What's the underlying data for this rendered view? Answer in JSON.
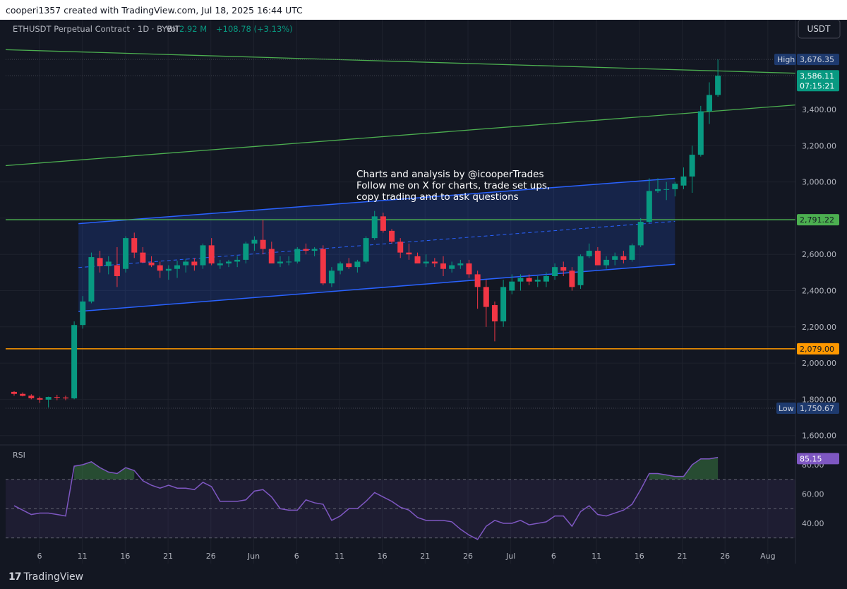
{
  "header": {
    "credit": "cooperi1357 created with TradingView.com, Jul 18, 2025 16:44 UTC"
  },
  "legend": {
    "symbol": "ETHUSDT Perpetual Contract · 1D · BYBIT",
    "vol_label": "Vol",
    "vol_value": "2.92 M",
    "change": "+108.78 (+3.13%)"
  },
  "currency_button": "USDT",
  "footer": {
    "brand": "TradingView",
    "logo_glyph": "17"
  },
  "colors": {
    "background": "#131722",
    "up": "#089981",
    "down": "#f23645",
    "channel": "#2962ff",
    "green_line": "#4caf50",
    "orange_line": "#ff9800",
    "rsi": "#7e57c2",
    "text": "#b2b5be"
  },
  "chart_data": {
    "type": "candlestick",
    "title": "",
    "price_axis": {
      "ticks": [
        3400,
        3200,
        3000,
        2800,
        2600,
        2400,
        2200,
        2000,
        1800,
        1600
      ],
      "tick_labels": [
        "3,400.00",
        "3,200.00",
        "3,000.00",
        "",
        "2,600.00",
        "2,400.00",
        "2,200.00",
        "2,000.00",
        "1,800.00",
        "1,600.00"
      ]
    },
    "time_axis": {
      "labels": [
        "6",
        "11",
        "16",
        "21",
        "26",
        "Jun",
        "6",
        "11",
        "16",
        "21",
        "26",
        "Jul",
        "6",
        "11",
        "16",
        "21",
        "26",
        "Aug"
      ]
    },
    "high": {
      "label": "High",
      "value": 3676.35,
      "text": "3,676.35"
    },
    "low": {
      "label": "Low",
      "value": 1750.67,
      "text": "1,750.67"
    },
    "last_price": {
      "value": 3586.11,
      "text": "3,586.11",
      "countdown": "07:15:21"
    },
    "levels": [
      {
        "name": "horizontal-green-level",
        "value": 2791.22,
        "text": "2,791.22",
        "color": "#4caf50"
      },
      {
        "name": "horizontal-orange-level",
        "value": 2079.0,
        "text": "2,079.00",
        "color": "#ff9800"
      }
    ],
    "annotation": [
      "Charts and analysis by @icooperTrades",
      "Follow me on X for charts, trade set ups,",
      "copy trading and to ask questions"
    ],
    "ohlc": [
      [
        1841,
        1845,
        1820,
        1830
      ],
      [
        1830,
        1838,
        1816,
        1819
      ],
      [
        1820,
        1828,
        1800,
        1806
      ],
      [
        1806,
        1815,
        1780,
        1798
      ],
      [
        1798,
        1815,
        1755,
        1813
      ],
      [
        1813,
        1825,
        1795,
        1810
      ],
      [
        1810,
        1820,
        1795,
        1805
      ],
      [
        1805,
        2230,
        1800,
        2210
      ],
      [
        2210,
        2370,
        2190,
        2340
      ],
      [
        2340,
        2610,
        2330,
        2585
      ],
      [
        2580,
        2620,
        2500,
        2535
      ],
      [
        2535,
        2590,
        2490,
        2560
      ],
      [
        2540,
        2640,
        2420,
        2480
      ],
      [
        2520,
        2700,
        2500,
        2690
      ],
      [
        2690,
        2720,
        2580,
        2610
      ],
      [
        2610,
        2640,
        2560,
        2555
      ],
      [
        2555,
        2590,
        2530,
        2540
      ],
      [
        2540,
        2560,
        2470,
        2510
      ],
      [
        2510,
        2540,
        2460,
        2520
      ],
      [
        2520,
        2565,
        2470,
        2540
      ],
      [
        2540,
        2575,
        2500,
        2560
      ],
      [
        2560,
        2580,
        2510,
        2540
      ],
      [
        2540,
        2660,
        2520,
        2650
      ],
      [
        2650,
        2690,
        2540,
        2550
      ],
      [
        2540,
        2570,
        2520,
        2550
      ],
      [
        2550,
        2570,
        2530,
        2560
      ],
      [
        2560,
        2590,
        2530,
        2570
      ],
      [
        2570,
        2670,
        2550,
        2660
      ],
      [
        2660,
        2700,
        2620,
        2680
      ],
      [
        2680,
        2790,
        2600,
        2630
      ],
      [
        2630,
        2670,
        2550,
        2550
      ],
      [
        2550,
        2590,
        2530,
        2560
      ],
      [
        2560,
        2590,
        2540,
        2560
      ],
      [
        2560,
        2640,
        2550,
        2630
      ],
      [
        2630,
        2660,
        2600,
        2620
      ],
      [
        2620,
        2640,
        2590,
        2630
      ],
      [
        2630,
        2650,
        2430,
        2440
      ],
      [
        2440,
        2530,
        2420,
        2510
      ],
      [
        2510,
        2560,
        2490,
        2550
      ],
      [
        2550,
        2580,
        2520,
        2530
      ],
      [
        2530,
        2570,
        2500,
        2560
      ],
      [
        2560,
        2700,
        2550,
        2690
      ],
      [
        2690,
        2840,
        2680,
        2810
      ],
      [
        2810,
        2830,
        2720,
        2730
      ],
      [
        2730,
        2740,
        2660,
        2670
      ],
      [
        2670,
        2690,
        2580,
        2610
      ],
      [
        2610,
        2660,
        2570,
        2600
      ],
      [
        2590,
        2610,
        2560,
        2550
      ],
      [
        2550,
        2600,
        2530,
        2560
      ],
      [
        2560,
        2580,
        2530,
        2550
      ],
      [
        2550,
        2590,
        2480,
        2520
      ],
      [
        2520,
        2560,
        2500,
        2540
      ],
      [
        2540,
        2570,
        2520,
        2550
      ],
      [
        2550,
        2570,
        2470,
        2490
      ],
      [
        2490,
        2510,
        2300,
        2420
      ],
      [
        2420,
        2460,
        2200,
        2310
      ],
      [
        2320,
        2340,
        2120,
        2230
      ],
      [
        2230,
        2460,
        2200,
        2420
      ],
      [
        2400,
        2490,
        2380,
        2450
      ],
      [
        2450,
        2490,
        2400,
        2470
      ],
      [
        2470,
        2490,
        2430,
        2450
      ],
      [
        2450,
        2480,
        2420,
        2460
      ],
      [
        2450,
        2500,
        2420,
        2480
      ],
      [
        2480,
        2550,
        2460,
        2530
      ],
      [
        2530,
        2560,
        2480,
        2510
      ],
      [
        2510,
        2530,
        2400,
        2420
      ],
      [
        2430,
        2600,
        2410,
        2590
      ],
      [
        2590,
        2660,
        2580,
        2620
      ],
      [
        2620,
        2640,
        2540,
        2540
      ],
      [
        2540,
        2590,
        2520,
        2570
      ],
      [
        2570,
        2610,
        2540,
        2590
      ],
      [
        2590,
        2620,
        2550,
        2570
      ],
      [
        2570,
        2660,
        2560,
        2650
      ],
      [
        2650,
        2800,
        2640,
        2780
      ],
      [
        2780,
        3020,
        2770,
        2950
      ],
      [
        2950,
        3020,
        2940,
        2960
      ],
      [
        2960,
        3000,
        2900,
        2960
      ],
      [
        2960,
        3000,
        2920,
        2990
      ],
      [
        2980,
        3080,
        2960,
        3030
      ],
      [
        3030,
        3200,
        2940,
        3150
      ],
      [
        3150,
        3420,
        3140,
        3390
      ],
      [
        3390,
        3550,
        3320,
        3480
      ],
      [
        3480,
        3676,
        3470,
        3586
      ]
    ],
    "rsi": {
      "label": "RSI",
      "last": 85.15,
      "last_text": "85.15",
      "upper_band": 70,
      "lower_band": 30,
      "ticks": [
        80,
        60,
        40
      ],
      "tick_labels": [
        "80.00",
        "60.00",
        "40.00"
      ],
      "values": [
        52,
        49,
        46,
        47,
        47,
        46,
        45,
        79,
        80,
        82,
        78,
        75,
        74,
        78,
        76,
        69,
        66,
        64,
        66,
        64,
        64,
        63,
        68,
        65,
        55,
        55,
        55,
        56,
        62,
        63,
        58,
        50,
        49,
        49,
        56,
        54,
        53,
        42,
        45,
        50,
        50,
        55,
        61,
        58,
        55,
        51,
        49,
        44,
        42,
        42,
        42,
        41,
        36,
        32,
        29,
        38,
        42,
        40,
        40,
        42,
        39,
        40,
        41,
        45,
        45,
        38,
        48,
        52,
        46,
        45,
        47,
        49,
        53,
        63,
        74,
        74,
        73,
        72,
        72,
        80,
        84,
        84,
        85
      ]
    }
  }
}
